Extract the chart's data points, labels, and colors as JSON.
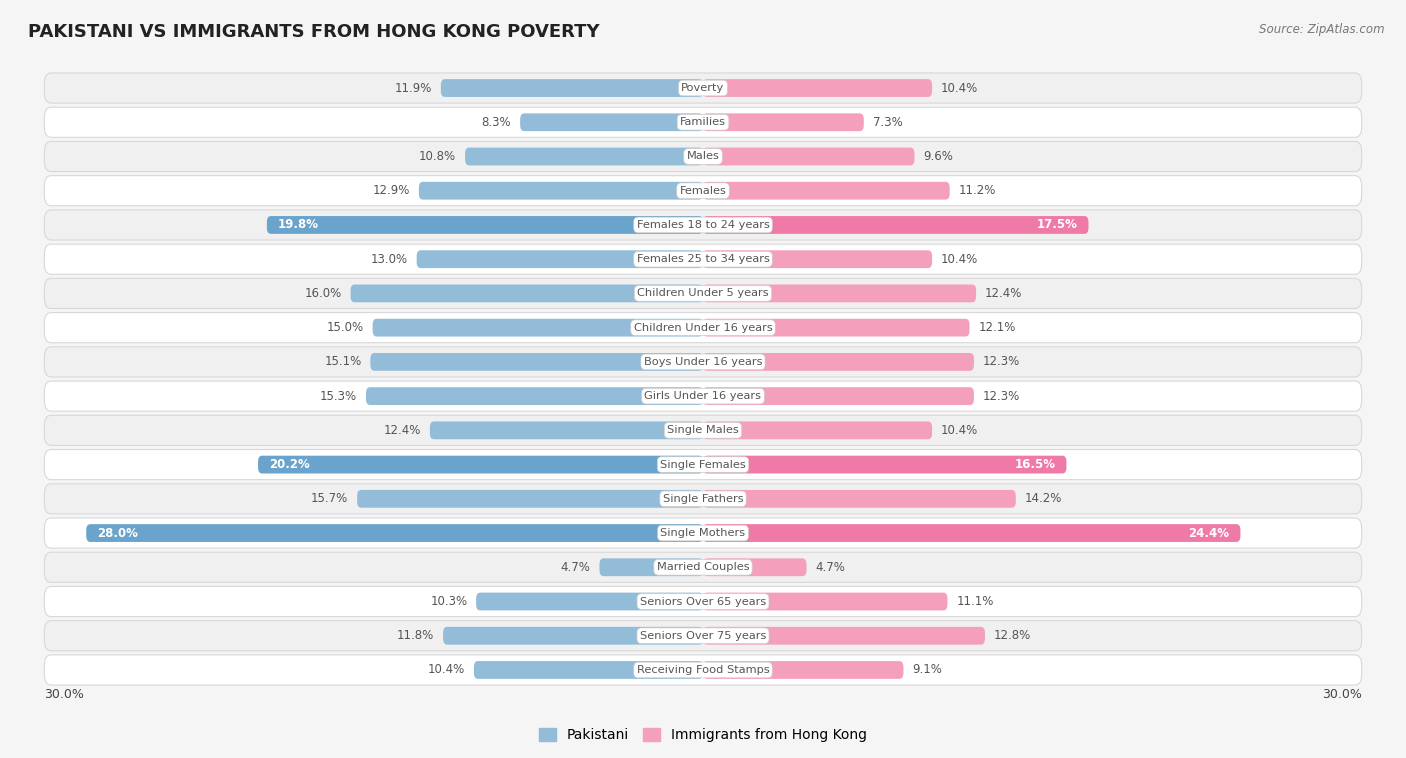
{
  "title": "PAKISTANI VS IMMIGRANTS FROM HONG KONG POVERTY",
  "source": "Source: ZipAtlas.com",
  "categories": [
    "Poverty",
    "Families",
    "Males",
    "Females",
    "Females 18 to 24 years",
    "Females 25 to 34 years",
    "Children Under 5 years",
    "Children Under 16 years",
    "Boys Under 16 years",
    "Girls Under 16 years",
    "Single Males",
    "Single Females",
    "Single Fathers",
    "Single Mothers",
    "Married Couples",
    "Seniors Over 65 years",
    "Seniors Over 75 years",
    "Receiving Food Stamps"
  ],
  "pakistani": [
    11.9,
    8.3,
    10.8,
    12.9,
    19.8,
    13.0,
    16.0,
    15.0,
    15.1,
    15.3,
    12.4,
    20.2,
    15.7,
    28.0,
    4.7,
    10.3,
    11.8,
    10.4
  ],
  "hong_kong": [
    10.4,
    7.3,
    9.6,
    11.2,
    17.5,
    10.4,
    12.4,
    12.1,
    12.3,
    12.3,
    10.4,
    16.5,
    14.2,
    24.4,
    4.7,
    11.1,
    12.8,
    9.1
  ],
  "pakistani_color": "#92bcd8",
  "hong_kong_color": "#f4a0bc",
  "pakistani_highlight_color": "#6aa3cb",
  "hong_kong_highlight_color": "#ef7aa8",
  "highlight_rows": [
    4,
    11,
    13
  ],
  "row_bg_colors": [
    "#f0f0f0",
    "#ffffff"
  ],
  "row_border_color": "#d8d8d8",
  "background_color": "#f5f5f5",
  "max_val": 30.0,
  "legend_pakistani": "Pakistani",
  "legend_hong_kong": "Immigrants from Hong Kong",
  "label_color_normal": "#555555",
  "label_color_highlight": "#ffffff",
  "center_label_bg": "#ffffff",
  "center_label_color": "#555555"
}
